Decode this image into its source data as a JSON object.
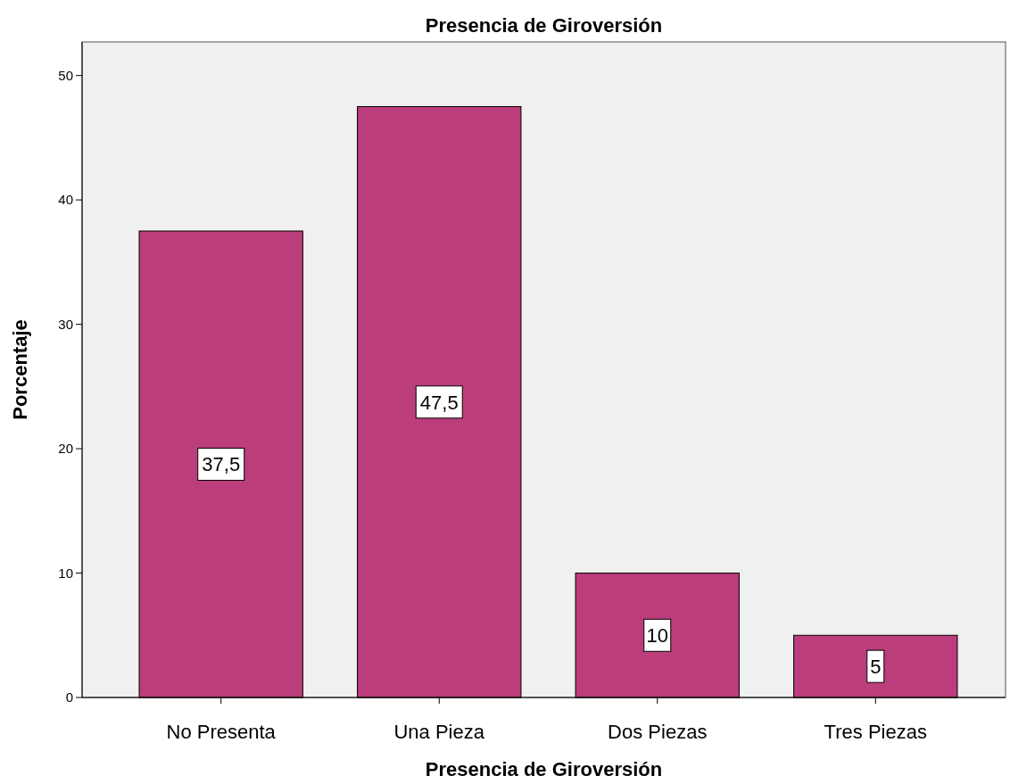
{
  "chart_data": {
    "type": "bar",
    "title": "Presencia de Giroversión",
    "xlabel": "Presencia de Giroversión",
    "ylabel": "Porcentaje",
    "categories": [
      "No Presenta",
      "Una Pieza",
      "Dos Piezas",
      "Tres Piezas"
    ],
    "values": [
      37.5,
      47.5,
      10,
      5
    ],
    "value_labels": [
      "37,5",
      "47,5",
      "10",
      "5"
    ],
    "color": "#bb3d7b",
    "ylim": [
      0,
      52.7
    ],
    "yticks": [
      0,
      10,
      20,
      30,
      40,
      50
    ],
    "grid": false
  }
}
